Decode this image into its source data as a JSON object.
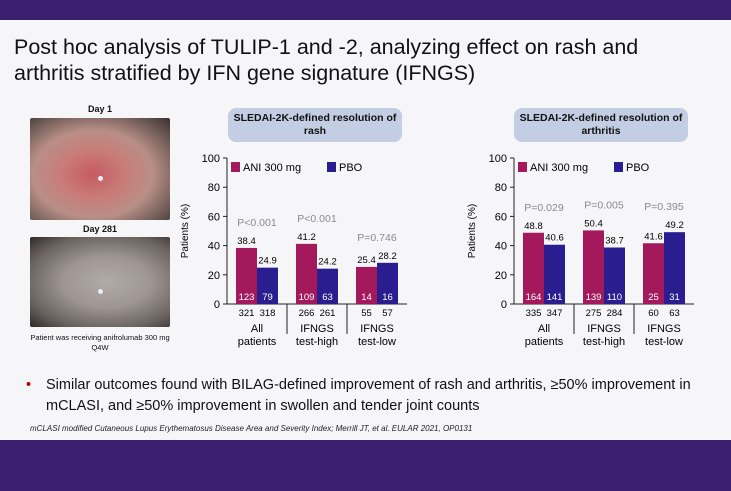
{
  "slide": {
    "title": "Post hoc analysis of TULIP-1 and -2, analyzing effect on rash and arthritis stratified by IFN gene signature (IFNGS)",
    "bullet": "Similar outcomes found with BILAG-defined improvement of rash and arthritis, ≥50% improvement in mCLASI, and ≥50% improvement in swollen and tender joint counts",
    "footnote": "mCLASI modified Cutaneous Lupus Erythematosus Disease Area and Severity Index; Merrill JT, et al. EULAR 2021, OP0131",
    "photo_day1_label": "Day 1",
    "photo_day281_label": "Day 281",
    "photo_caption": "Patient was receiving anifrolumab 300 mg Q4W"
  },
  "colors": {
    "ani": "#a3195b",
    "pbo": "#2a1d8f",
    "pill": "#c3cde3",
    "bar_top": "#3b1f6e"
  },
  "chart_data": [
    {
      "type": "bar",
      "title": "SLEDAI-2K-defined resolution of rash",
      "ylabel": "Patients (%)",
      "ylim": [
        0,
        100
      ],
      "yticks": [
        0,
        20,
        40,
        60,
        80,
        100
      ],
      "legend": [
        "ANI 300 mg",
        "PBO"
      ],
      "categories": [
        {
          "line1": "All",
          "line2": "patients"
        },
        {
          "line1": "IFNGS",
          "line2": "test-high"
        },
        {
          "line1": "IFNGS",
          "line2": "test-low"
        }
      ],
      "pvalues": [
        "P<0.001",
        "P<0.001",
        "P=0.746"
      ],
      "series": [
        {
          "name": "ANI 300 mg",
          "values": [
            38.4,
            41.2,
            25.4
          ],
          "labels": [
            "38.4",
            "41.2",
            "25.4"
          ],
          "n_responders": [
            "123",
            "109",
            "14"
          ],
          "n_total": [
            "321",
            "266",
            "55"
          ]
        },
        {
          "name": "PBO",
          "values": [
            24.9,
            24.2,
            28.2
          ],
          "labels": [
            "24.9",
            "24.2",
            "28.2"
          ],
          "n_responders": [
            "79",
            "63",
            "16"
          ],
          "n_total": [
            "318",
            "261",
            "57"
          ]
        }
      ]
    },
    {
      "type": "bar",
      "title": "SLEDAI-2K-defined resolution of arthritis",
      "ylabel": "Patients (%)",
      "ylim": [
        0,
        100
      ],
      "yticks": [
        0,
        20,
        40,
        60,
        80,
        100
      ],
      "legend": [
        "ANI 300 mg",
        "PBO"
      ],
      "categories": [
        {
          "line1": "All",
          "line2": "patients"
        },
        {
          "line1": "IFNGS",
          "line2": "test-high"
        },
        {
          "line1": "IFNGS",
          "line2": "test-low"
        }
      ],
      "pvalues": [
        "P=0.029",
        "P=0.005",
        "P=0.395"
      ],
      "series": [
        {
          "name": "ANI 300 mg",
          "values": [
            48.8,
            50.4,
            41.6
          ],
          "labels": [
            "48.8",
            "50.4",
            "41.6"
          ],
          "n_responders": [
            "164",
            "139",
            "25"
          ],
          "n_total": [
            "335",
            "275",
            "60"
          ]
        },
        {
          "name": "PBO",
          "values": [
            40.6,
            38.7,
            49.2
          ],
          "labels": [
            "40.6",
            "38.7",
            "49.2"
          ],
          "n_responders": [
            "141",
            "110",
            "31"
          ],
          "n_total": [
            "347",
            "284",
            "63"
          ]
        }
      ]
    }
  ]
}
